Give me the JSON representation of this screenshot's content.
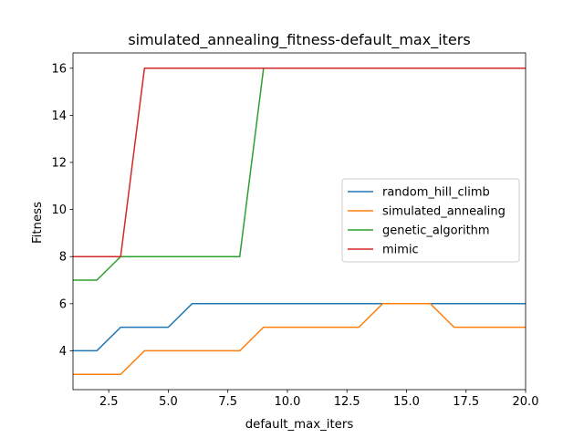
{
  "chart_data": {
    "type": "line",
    "title": "simulated_annealing_fitness-default_max_iters",
    "xlabel": "default_max_iters",
    "ylabel": "Fitness",
    "xlim": [
      1,
      20
    ],
    "ylim": [
      2.35,
      16.65
    ],
    "x_ticks": [
      2.5,
      5.0,
      7.5,
      10.0,
      12.5,
      15.0,
      17.5,
      20.0
    ],
    "x_tick_labels": [
      "2.5",
      "5.0",
      "7.5",
      "10.0",
      "12.5",
      "15.0",
      "17.5",
      "20.0"
    ],
    "y_ticks": [
      4,
      6,
      8,
      10,
      12,
      14,
      16
    ],
    "y_tick_labels": [
      "4",
      "6",
      "8",
      "10",
      "12",
      "14",
      "16"
    ],
    "grid": false,
    "legend_position": "center-right",
    "x": [
      1,
      2,
      3,
      4,
      5,
      6,
      7,
      8,
      9,
      10,
      11,
      12,
      13,
      14,
      15,
      16,
      17,
      18,
      19,
      20
    ],
    "series": [
      {
        "name": "random_hill_climb",
        "color": "#1f77b4",
        "values": [
          4,
          4,
          5,
          5,
          5,
          6,
          6,
          6,
          6,
          6,
          6,
          6,
          6,
          6,
          6,
          6,
          6,
          6,
          6,
          6
        ]
      },
      {
        "name": "simulated_annealing",
        "color": "#ff7f0e",
        "values": [
          3,
          3,
          3,
          4,
          4,
          4,
          4,
          4,
          5,
          5,
          5,
          5,
          5,
          6,
          6,
          6,
          5,
          5,
          5,
          5
        ]
      },
      {
        "name": "genetic_algorithm",
        "color": "#2ca02c",
        "values": [
          7,
          7,
          8,
          8,
          8,
          8,
          8,
          8,
          16,
          16,
          16,
          16,
          16,
          16,
          16,
          16,
          16,
          16,
          16,
          16
        ]
      },
      {
        "name": "mimic",
        "color": "#d62728",
        "values": [
          8,
          8,
          8,
          16,
          16,
          16,
          16,
          16,
          16,
          16,
          16,
          16,
          16,
          16,
          16,
          16,
          16,
          16,
          16,
          16
        ]
      }
    ]
  }
}
